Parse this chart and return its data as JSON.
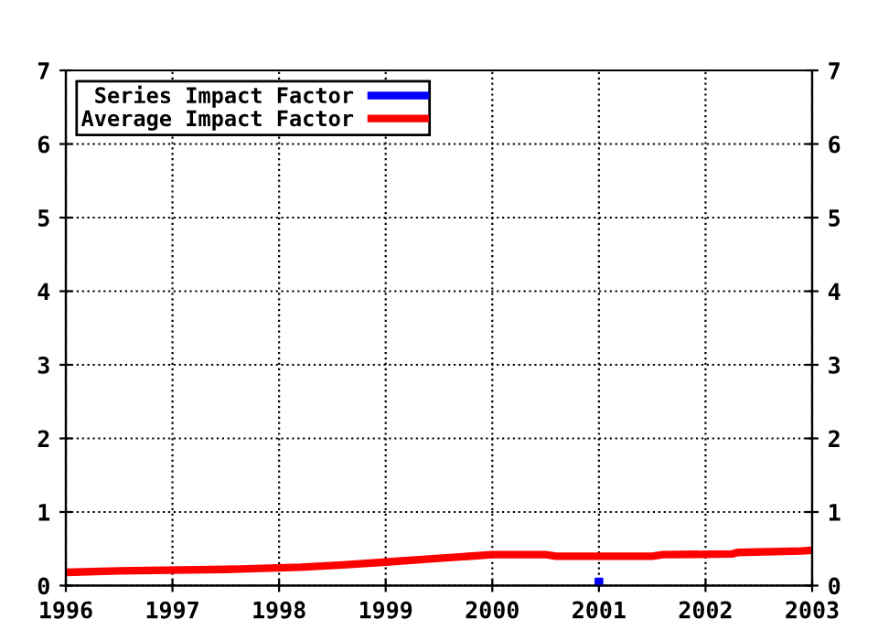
{
  "chart_data": {
    "type": "line",
    "series": [
      {
        "name": "Series Impact Factor",
        "color": "#0000ff",
        "type": "scatter",
        "marker": "square",
        "x": [
          2001
        ],
        "values": [
          0.05
        ]
      },
      {
        "name": "Average Impact Factor",
        "color": "#ff0000",
        "marker": "none",
        "x": [
          1996,
          1996.5,
          1997.5,
          1998.2,
          1998.6,
          1999,
          1999.5,
          2000,
          2000.5,
          2000.6,
          2001.5,
          2001.6,
          2002.25,
          2002.3,
          2002.9,
          2003
        ],
        "values": [
          0.18,
          0.2,
          0.22,
          0.25,
          0.28,
          0.32,
          0.37,
          0.42,
          0.42,
          0.4,
          0.4,
          0.42,
          0.43,
          0.45,
          0.47,
          0.48
        ]
      }
    ],
    "xlim": [
      1996,
      2003
    ],
    "xticks": [
      1996,
      1997,
      1998,
      1999,
      2000,
      2001,
      2002,
      2003
    ],
    "ylim": [
      0,
      7
    ],
    "yticks": [
      0,
      1,
      2,
      3,
      4,
      5,
      6,
      7
    ],
    "y2lim": [
      0,
      7
    ],
    "y2ticks": [
      0,
      1,
      2,
      3,
      4,
      5,
      6,
      7
    ],
    "grid": true,
    "legend": "top left",
    "line_style": "solid"
  }
}
